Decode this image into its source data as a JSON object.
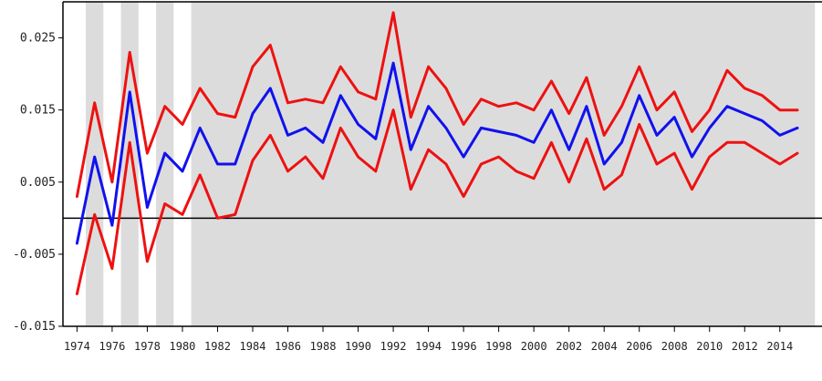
{
  "chart_data": {
    "type": "line",
    "title": "",
    "xlabel": "",
    "ylabel": "",
    "xlim": [
      1973.2,
      2016.4
    ],
    "ylim": [
      -0.015,
      0.03
    ],
    "y_ticks": [
      -0.015,
      -0.005,
      0.005,
      0.015,
      0.025
    ],
    "y_tick_labels": [
      "-0.015",
      "-0.005",
      "0.005",
      "0.015",
      "0.025"
    ],
    "x_ticks": [
      1974,
      1976,
      1978,
      1980,
      1982,
      1984,
      1986,
      1988,
      1990,
      1992,
      1994,
      1996,
      1998,
      2000,
      2002,
      2004,
      2006,
      2008,
      2010,
      2012,
      2014
    ],
    "x_tick_labels": [
      "1974",
      "1976",
      "1978",
      "1980",
      "1982",
      "1984",
      "1986",
      "1988",
      "1990",
      "1992",
      "1994",
      "1996",
      "1998",
      "2000",
      "2002",
      "2004",
      "2006",
      "2008",
      "2010",
      "2012",
      "2014"
    ],
    "zero_line": 0,
    "grid": false,
    "shaded_periods": [
      [
        1974.5,
        1975.5
      ],
      [
        1976.5,
        1977.5
      ],
      [
        1978.5,
        1979.5
      ],
      [
        1980.5,
        2016.0
      ]
    ],
    "x": [
      1974,
      1975,
      1976,
      1977,
      1978,
      1979,
      1980,
      1981,
      1982,
      1983,
      1984,
      1985,
      1986,
      1987,
      1988,
      1989,
      1990,
      1991,
      1992,
      1993,
      1994,
      1995,
      1996,
      1997,
      1998,
      1999,
      2000,
      2001,
      2002,
      2003,
      2004,
      2005,
      2006,
      2007,
      2008,
      2009,
      2010,
      2011,
      2012,
      2013,
      2014,
      2015
    ],
    "series": [
      {
        "color": "#ee1111",
        "values": [
          0.003,
          0.016,
          0.005,
          0.023,
          0.009,
          0.0155,
          0.013,
          0.018,
          0.0145,
          0.014,
          0.021,
          0.024,
          0.016,
          0.0165,
          0.016,
          0.021,
          0.0175,
          0.0165,
          0.0285,
          0.014,
          0.021,
          0.018,
          0.013,
          0.0165,
          0.0155,
          0.016,
          0.015,
          0.019,
          0.0145,
          0.0195,
          0.0115,
          0.0155,
          0.021,
          0.015,
          0.0175,
          0.012,
          0.015,
          0.0205,
          0.018,
          0.017,
          0.015,
          0.015
        ]
      },
      {
        "color": "#1111ee",
        "values": [
          -0.0035,
          0.0085,
          -0.001,
          0.0175,
          0.0015,
          0.009,
          0.0065,
          0.0125,
          0.0075,
          0.0075,
          0.0145,
          0.018,
          0.0115,
          0.0125,
          0.0105,
          0.017,
          0.013,
          0.011,
          0.0215,
          0.0095,
          0.0155,
          0.0125,
          0.0085,
          0.0125,
          0.012,
          0.0115,
          0.0105,
          0.015,
          0.0095,
          0.0155,
          0.0075,
          0.0105,
          0.017,
          0.0115,
          0.014,
          0.0085,
          0.0125,
          0.0155,
          0.0145,
          0.0135,
          0.0115,
          0.0125
        ]
      },
      {
        "color": "#ee1111",
        "values": [
          -0.0105,
          0.0005,
          -0.007,
          0.0105,
          -0.006,
          0.002,
          0.0005,
          0.006,
          0.0,
          0.0005,
          0.008,
          0.0115,
          0.0065,
          0.0085,
          0.0055,
          0.0125,
          0.0085,
          0.0065,
          0.015,
          0.004,
          0.0095,
          0.0075,
          0.003,
          0.0075,
          0.0085,
          0.0065,
          0.0055,
          0.0105,
          0.005,
          0.011,
          0.004,
          0.006,
          0.013,
          0.0075,
          0.009,
          0.004,
          0.0085,
          0.0105,
          0.0105,
          0.009,
          0.0075,
          0.009
        ]
      }
    ]
  }
}
